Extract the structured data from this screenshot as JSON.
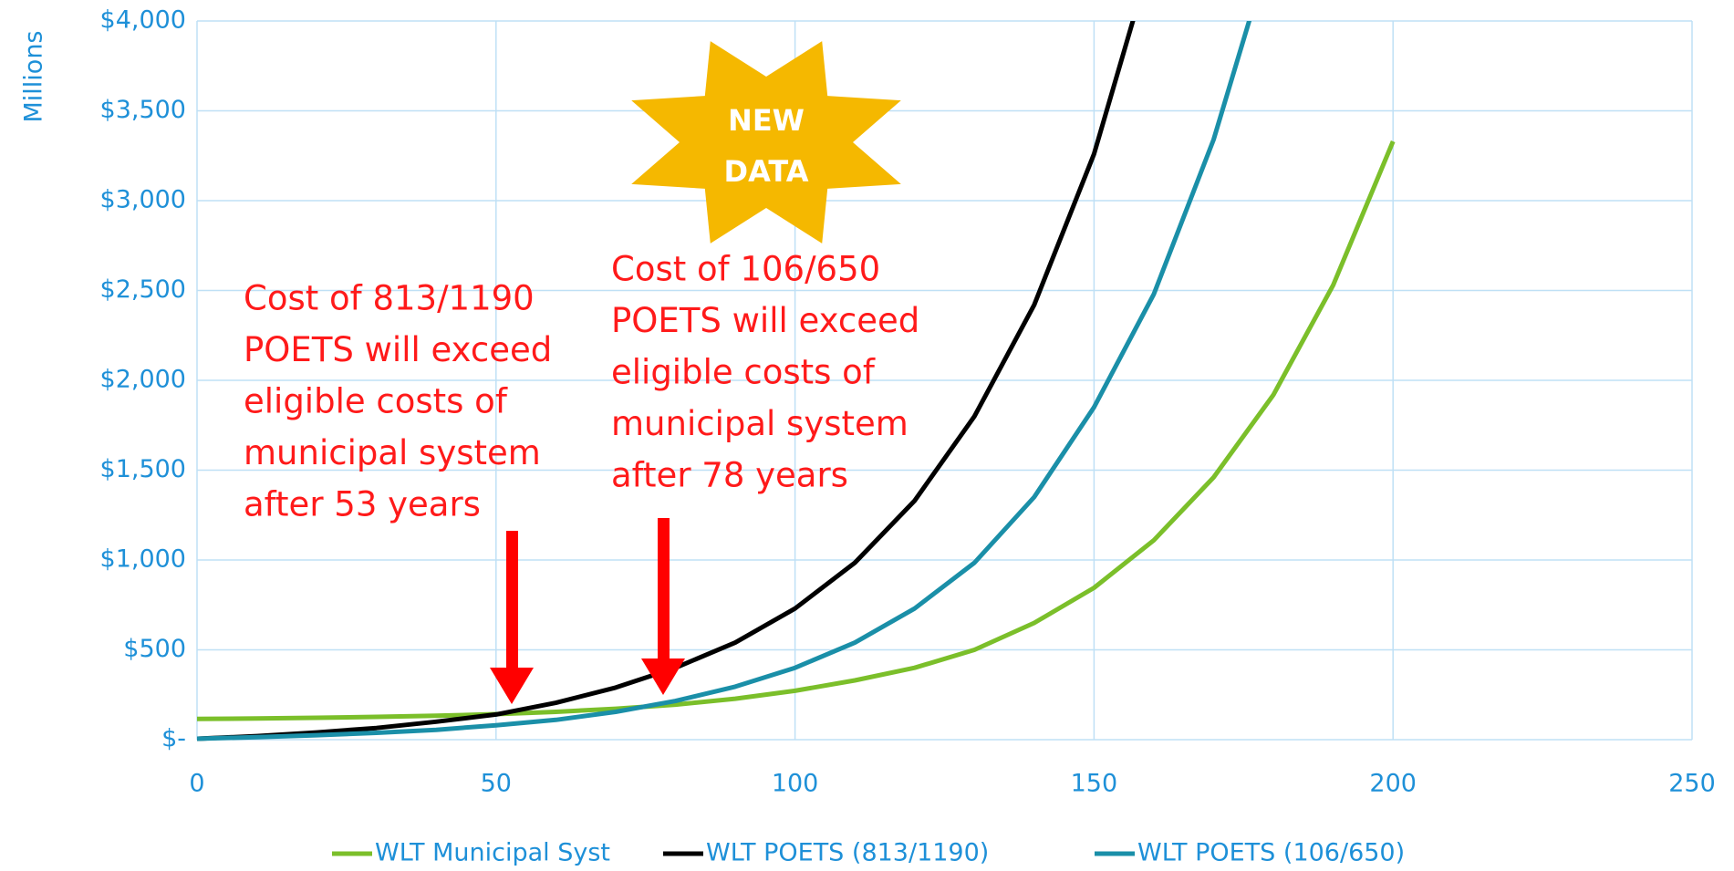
{
  "chart_data": {
    "type": "line",
    "y_label": "Millions",
    "x": [
      0,
      10,
      20,
      30,
      40,
      50,
      60,
      70,
      80,
      90,
      100,
      110,
      120,
      130,
      140,
      150,
      160,
      170,
      180,
      190,
      200
    ],
    "series": [
      {
        "name": "WLT Municipal Syst",
        "color": "#7bbf2a",
        "values": [
          115,
          118,
          122,
          127,
          133,
          142,
          155,
          172,
          195,
          228,
          272,
          330,
          400,
          500,
          650,
          845,
          1110,
          1460,
          1920,
          2530,
          3330
        ]
      },
      {
        "name": "WLT POETS (813/1190)",
        "color": "#000000",
        "values": [
          5,
          20,
          40,
          65,
          100,
          140,
          205,
          290,
          400,
          540,
          730,
          985,
          1330,
          1800,
          2420,
          3260,
          4400,
          null,
          null,
          null,
          null
        ]
      },
      {
        "name": "WLT POETS (106/650)",
        "color": "#1a8fa8",
        "values": [
          5,
          14,
          25,
          38,
          55,
          80,
          110,
          155,
          215,
          295,
          400,
          540,
          730,
          985,
          1350,
          1850,
          2480,
          3340,
          4450,
          null,
          null
        ]
      }
    ],
    "xlim": [
      0,
      250
    ],
    "xticks": [
      0,
      50,
      100,
      150,
      200,
      250
    ],
    "ylim": [
      0,
      4000
    ],
    "yticks": [
      {
        "value": 0,
        "label": "$-"
      },
      {
        "value": 500,
        "label": "$500"
      },
      {
        "value": 1000,
        "label": "$1,000"
      },
      {
        "value": 1500,
        "label": "$1,500"
      },
      {
        "value": 2000,
        "label": "$2,000"
      },
      {
        "value": 2500,
        "label": "$2,500"
      },
      {
        "value": 3000,
        "label": "$3,000"
      },
      {
        "value": 3500,
        "label": "$3,500"
      },
      {
        "value": 4000,
        "label": "$4,000"
      }
    ],
    "grid": true,
    "legend": "bottom",
    "annotations": [
      [
        "Cost of 813/1190",
        "POETS will exceed",
        "eligible costs of",
        "municipal system",
        "after 53 years"
      ],
      [
        "Cost of 106/650",
        "POETS will exceed",
        "eligible costs of",
        "municipal system",
        "after 78 years"
      ]
    ],
    "badge": [
      "NEW",
      "DATA"
    ]
  }
}
